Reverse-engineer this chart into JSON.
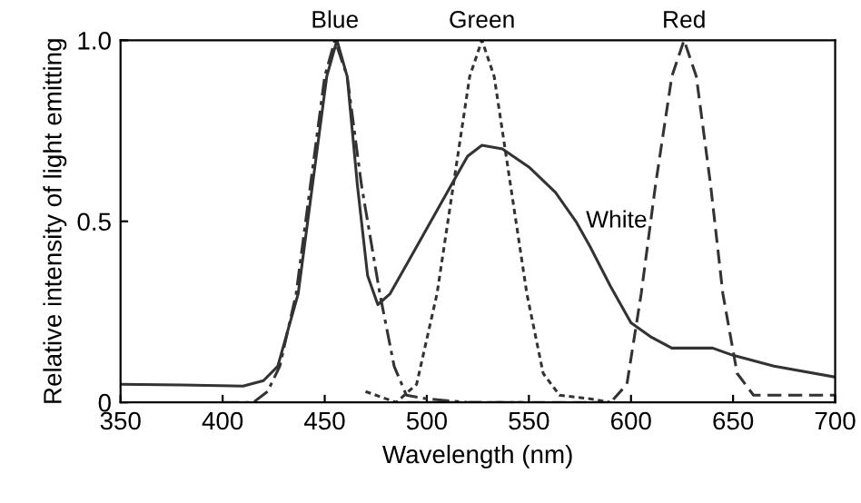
{
  "chart_data": {
    "type": "line",
    "xlabel": "Wavelength (nm)",
    "ylabel": "Relative intensity of light emitting",
    "xlim": [
      350,
      700
    ],
    "xticks": [
      350,
      400,
      450,
      500,
      550,
      600,
      650,
      700
    ],
    "ylim": [
      0,
      1.0
    ],
    "yticks": [
      {
        "value": 0,
        "label": "0"
      },
      0.5,
      {
        "value": 1.0,
        "label": "1.0"
      }
    ],
    "grid": false,
    "legend": false,
    "marker": "none",
    "series": [
      {
        "name": "White",
        "color": "#333333",
        "line_style": "solid",
        "x": [
          350,
          380,
          410,
          420,
          427,
          437,
          444,
          451,
          456,
          461,
          466,
          471,
          476,
          482,
          492,
          502,
          512,
          520,
          527,
          537,
          550,
          563,
          573,
          580,
          590,
          600,
          610,
          620,
          640,
          650,
          670,
          700
        ],
        "values": [
          0.05,
          0.048,
          0.045,
          0.06,
          0.1,
          0.3,
          0.6,
          0.9,
          1.0,
          0.9,
          0.6,
          0.35,
          0.27,
          0.3,
          0.4,
          0.5,
          0.6,
          0.68,
          0.71,
          0.7,
          0.65,
          0.58,
          0.5,
          0.43,
          0.32,
          0.22,
          0.18,
          0.15,
          0.15,
          0.13,
          0.1,
          0.07
        ]
      },
      {
        "name": "Blue",
        "color": "#333333",
        "line_style": "dashdot",
        "x": [
          400,
          415,
          422,
          428,
          436,
          443,
          450,
          455,
          461,
          468,
          477,
          484,
          490,
          500,
          520,
          550
        ],
        "values": [
          0.0,
          0.0,
          0.03,
          0.1,
          0.3,
          0.6,
          0.9,
          1.0,
          0.9,
          0.6,
          0.3,
          0.1,
          0.02,
          0.01,
          0.0,
          0.0
        ]
      },
      {
        "name": "Green",
        "color": "#333333",
        "line_style": "dotted",
        "x": [
          470,
          485,
          495,
          505,
          513,
          521,
          527,
          533,
          541,
          549,
          557,
          565,
          580,
          590
        ],
        "values": [
          0.03,
          0.0,
          0.05,
          0.3,
          0.6,
          0.9,
          1.0,
          0.9,
          0.6,
          0.3,
          0.08,
          0.02,
          0.01,
          0.0
        ]
      },
      {
        "name": "Red",
        "color": "#333333",
        "line_style": "dashed",
        "x": [
          490,
          550,
          590,
          598,
          605,
          612,
          620,
          626,
          632,
          639,
          645,
          652,
          660,
          680,
          700
        ],
        "values": [
          0.0,
          0.0,
          0.0,
          0.05,
          0.3,
          0.6,
          0.9,
          1.0,
          0.9,
          0.6,
          0.3,
          0.08,
          0.02,
          0.02,
          0.02
        ]
      }
    ]
  }
}
